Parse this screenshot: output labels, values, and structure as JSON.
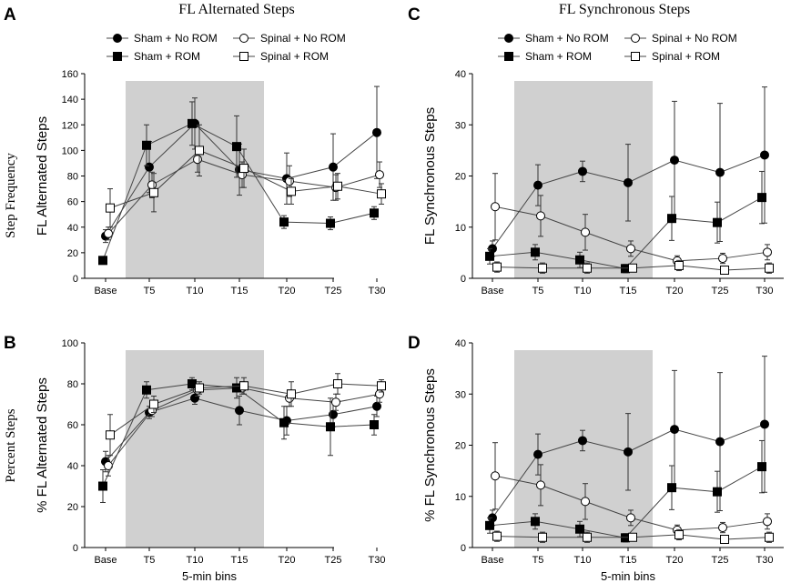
{
  "figure": {
    "row_labels": [
      "Step Frequency",
      "Percent Steps"
    ],
    "xlabel": "5-min bins"
  },
  "legend": [
    {
      "label": "Sham + No ROM",
      "marker": "circle",
      "fill": "#000000"
    },
    {
      "label": "Spinal + No ROM",
      "marker": "circle",
      "fill": "#ffffff"
    },
    {
      "label": "Sham + ROM",
      "marker": "square",
      "fill": "#000000"
    },
    {
      "label": "Spinal + ROM",
      "marker": "square",
      "fill": "#ffffff"
    }
  ],
  "chart_data": [
    {
      "panel": "A",
      "type": "line",
      "title": "FL Alternated Steps",
      "ylabel": "FL Alternated Steps",
      "xlabel": "",
      "categories": [
        "Base",
        "T5",
        "T10",
        "T15",
        "T20",
        "T25",
        "T30"
      ],
      "ylim": [
        0,
        160
      ],
      "yticks": [
        0,
        20,
        40,
        60,
        80,
        100,
        120,
        140,
        160
      ],
      "shaded_range": [
        "T5",
        "T15"
      ],
      "series": [
        {
          "name": "Sham + No ROM",
          "values": [
            33,
            87,
            121,
            85,
            78,
            87,
            114
          ],
          "err": [
            5,
            20,
            20,
            20,
            20,
            26,
            36
          ]
        },
        {
          "name": "Spinal + No ROM",
          "values": [
            35,
            73,
            93,
            81,
            76,
            71,
            81
          ],
          "err": [
            5,
            10,
            10,
            10,
            12,
            10,
            10
          ]
        },
        {
          "name": "Sham + ROM",
          "values": [
            14,
            104,
            121,
            103,
            44,
            43,
            51
          ],
          "err": [
            3,
            16,
            17,
            24,
            5,
            5,
            5
          ]
        },
        {
          "name": "Spinal + ROM",
          "values": [
            55,
            67,
            100,
            86,
            68,
            72,
            66
          ],
          "err": [
            15,
            15,
            20,
            15,
            10,
            10,
            8
          ]
        }
      ]
    },
    {
      "panel": "B",
      "type": "line",
      "title": "",
      "ylabel": "% FL Alternated Steps",
      "xlabel": "5-min bins",
      "categories": [
        "Base",
        "T5",
        "T10",
        "T15",
        "T20",
        "T25",
        "T30"
      ],
      "ylim": [
        0,
        100
      ],
      "yticks": [
        0,
        20,
        40,
        60,
        80,
        100
      ],
      "shaded_range": [
        "T5",
        "T15"
      ],
      "series": [
        {
          "name": "Sham + No ROM",
          "values": [
            42,
            66,
            73,
            67,
            62,
            65,
            69
          ],
          "err": [
            5,
            3,
            3,
            7,
            7,
            6,
            5
          ]
        },
        {
          "name": "Spinal + No ROM",
          "values": [
            40,
            67,
            77,
            78,
            73,
            71,
            75
          ],
          "err": [
            5,
            3,
            3,
            3,
            4,
            4,
            4
          ]
        },
        {
          "name": "Sham + ROM",
          "values": [
            30,
            77,
            80,
            78,
            61,
            59,
            60
          ],
          "err": [
            8,
            4,
            3,
            5,
            8,
            14,
            5
          ]
        },
        {
          "name": "Spinal + ROM",
          "values": [
            55,
            70,
            78,
            79,
            75,
            80,
            79
          ],
          "err": [
            10,
            4,
            3,
            4,
            6,
            5,
            3
          ]
        }
      ]
    },
    {
      "panel": "C",
      "type": "line",
      "title": "FL Synchronous Steps",
      "ylabel": "FL Synchronous Steps",
      "xlabel": "",
      "categories": [
        "Base",
        "T5",
        "T10",
        "T15",
        "T20",
        "T25",
        "T30"
      ],
      "ylim": [
        0,
        40
      ],
      "yticks": [
        0,
        10,
        20,
        30,
        40
      ],
      "shaded_range": [
        "T5",
        "T15"
      ],
      "series": [
        {
          "name": "Sham + No ROM",
          "values": [
            5.8,
            18.2,
            20.9,
            18.7,
            23.1,
            20.7,
            24.1
          ],
          "err": [
            1.5,
            4,
            2,
            7.5,
            11.5,
            13.5,
            13.3
          ]
        },
        {
          "name": "Spinal + No ROM",
          "values": [
            14,
            12.2,
            9,
            5.8,
            3.4,
            3.9,
            5.1
          ],
          "err": [
            6.5,
            4,
            3.5,
            1.5,
            1,
            1,
            1.5
          ]
        },
        {
          "name": "Sham + ROM",
          "values": [
            4.3,
            5.1,
            3.6,
            1.9,
            11.7,
            10.9,
            15.8
          ],
          "err": [
            1.5,
            1.5,
            1.5,
            0.8,
            4.3,
            4,
            5.1
          ]
        },
        {
          "name": "Spinal + ROM",
          "values": [
            2.2,
            2,
            2,
            2,
            2.5,
            1.6,
            2
          ],
          "err": [
            1,
            1,
            1,
            0.5,
            1,
            0.5,
            1
          ]
        }
      ]
    },
    {
      "panel": "D",
      "type": "line",
      "title": "",
      "ylabel": "% FL Synchronous Steps",
      "xlabel": "5-min bins",
      "categories": [
        "Base",
        "T5",
        "T10",
        "T15",
        "T20",
        "T25",
        "T30"
      ],
      "ylim": [
        0,
        40
      ],
      "yticks": [
        0,
        10,
        20,
        30,
        40
      ],
      "shaded_range": [
        "T5",
        "T15"
      ],
      "series": [
        {
          "name": "Sham + No ROM",
          "values": [
            5.8,
            18.2,
            20.9,
            18.7,
            23.1,
            20.7,
            24.1
          ],
          "err": [
            1.5,
            4,
            2,
            7.5,
            11.5,
            13.5,
            13.3
          ]
        },
        {
          "name": "Spinal + No ROM",
          "values": [
            14,
            12.2,
            9,
            5.8,
            3.4,
            3.9,
            5.1
          ],
          "err": [
            6.5,
            4,
            3.5,
            1.5,
            1,
            1,
            1.5
          ]
        },
        {
          "name": "Sham + ROM",
          "values": [
            4.3,
            5.1,
            3.6,
            1.9,
            11.7,
            10.9,
            15.8
          ],
          "err": [
            1.5,
            1.5,
            1.5,
            0.8,
            4.3,
            4,
            5.1
          ]
        },
        {
          "name": "Spinal + ROM",
          "values": [
            2.2,
            2,
            2,
            2,
            2.5,
            1.6,
            2
          ],
          "err": [
            1,
            1,
            1,
            0.5,
            1,
            0.5,
            1
          ]
        }
      ]
    }
  ]
}
